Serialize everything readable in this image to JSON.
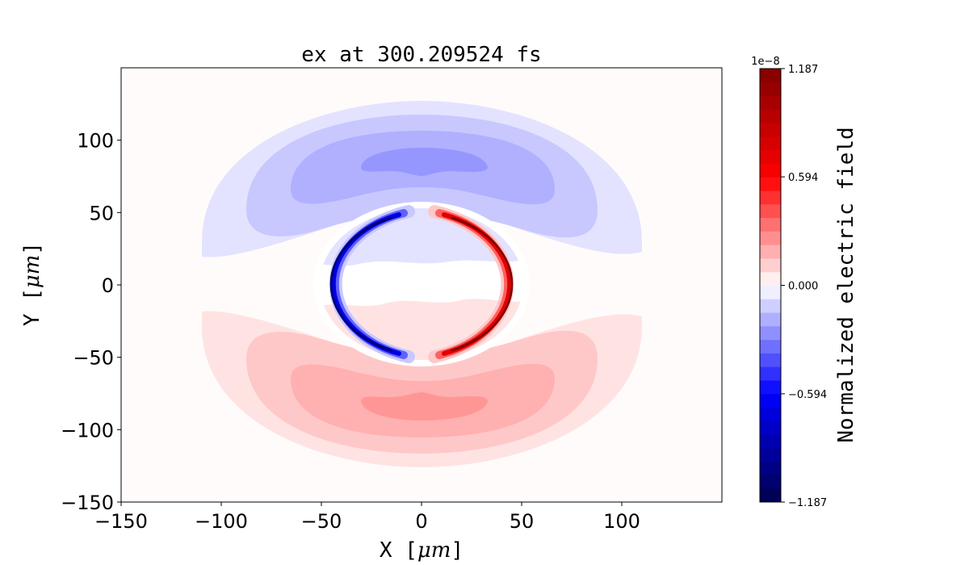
{
  "chart_data": {
    "type": "heatmap",
    "title": "ex at 300.209524 fs",
    "xlabel": "X [μm]",
    "xlabel_prefix": "X [",
    "xlabel_unit": "μm",
    "xlabel_suffix": "]",
    "ylabel": "Y [μm]",
    "ylabel_prefix": "Y [",
    "ylabel_unit": "μm",
    "ylabel_suffix": "]",
    "xlim": [
      -150,
      150
    ],
    "ylim": [
      -150,
      150
    ],
    "xticks": [
      -150,
      -100,
      -50,
      0,
      50,
      100
    ],
    "xtick_labels": [
      "−150",
      "−100",
      "−50",
      "0",
      "50",
      "100"
    ],
    "yticks": [
      -150,
      -100,
      -50,
      0,
      50,
      100
    ],
    "ytick_labels": [
      "−150",
      "−100",
      "−50",
      "0",
      "50",
      "100"
    ],
    "colormap": "seismic",
    "colorbar": {
      "label": "Normalized electric field",
      "offset_text": "1e−8",
      "range": [
        -1.187e-08,
        1.187e-08
      ],
      "levels": 32,
      "ticks": [
        -1.187,
        -0.594,
        0.0,
        0.594,
        1.187
      ],
      "tick_labels": [
        "−1.187",
        "−0.594",
        "0.000",
        "0.594",
        "1.187"
      ]
    },
    "features": [
      {
        "name": "upper-lobe",
        "sign": "negative",
        "center": [
          0,
          75
        ]
      },
      {
        "name": "lower-lobe",
        "sign": "positive",
        "center": [
          0,
          -75
        ]
      },
      {
        "name": "ring-left",
        "sign": "negative",
        "x": -50
      },
      {
        "name": "ring-right",
        "sign": "positive",
        "x": 50
      }
    ],
    "colors": {
      "neg1": "#e3e3ff",
      "neg2": "#c8c8ff",
      "neg3": "#b0b0ff",
      "neg4": "#9696ff",
      "pos1": "#ffe3e3",
      "pos2": "#ffc8c8",
      "pos3": "#ffb0b0",
      "pos4": "#ff9696",
      "background": "#fffbfb"
    }
  }
}
